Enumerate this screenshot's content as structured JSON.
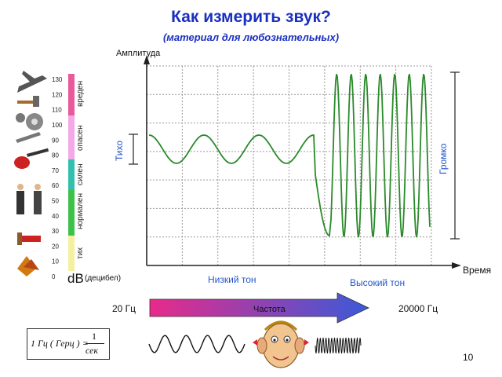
{
  "title": "Как измерить звук?",
  "subtitle": "(материал для любознательных)",
  "axis": {
    "y_label": "Амплитуда",
    "x_label": "Время"
  },
  "side_labels": {
    "quiet": "Тихо",
    "loud": "Громко"
  },
  "tones": {
    "low": "Низкий тон",
    "high": "Высокий тон"
  },
  "frequency": {
    "label": "Частота",
    "min": "20 Гц",
    "max": "20000 Гц"
  },
  "db_scale": {
    "unit": "dB",
    "unit_note": "(децибел)",
    "ticks": [
      "0",
      "10",
      "20",
      "30",
      "40",
      "50",
      "60",
      "70",
      "80",
      "90",
      "100",
      "110",
      "120",
      "130"
    ],
    "bands": [
      {
        "label": "тих",
        "color": "#f4f0a0"
      },
      {
        "label": "нормален",
        "color": "#3ec14a"
      },
      {
        "label": "силен",
        "color": "#33bfb0"
      },
      {
        "label": "опасен",
        "color": "#f4a8e8"
      },
      {
        "label": "вреден",
        "color": "#e85a9a"
      }
    ]
  },
  "formula": {
    "lhs": "1 Гц ( Герц ) =",
    "numerator": "1",
    "denominator": "сек"
  },
  "page_number": "10",
  "colors": {
    "wave": "#2b8a2b",
    "title": "#1a2fbf",
    "arrow_start": "#e82a8a",
    "arrow_end": "#3a5ad8"
  },
  "chart_data": {
    "type": "line",
    "title": "",
    "xlabel": "Время",
    "ylabel": "Амплитуда",
    "series": [
      {
        "description_only": false,
        "values_note": "",
        "x": [
          0,
          1,
          2,
          3,
          4,
          5,
          6,
          7,
          8,
          9
        ],
        "y": [
          0.5,
          0.7,
          0.5,
          0.7,
          0.5,
          0.7,
          -1,
          1,
          -1,
          1
        ]
      }
    ]
  }
}
